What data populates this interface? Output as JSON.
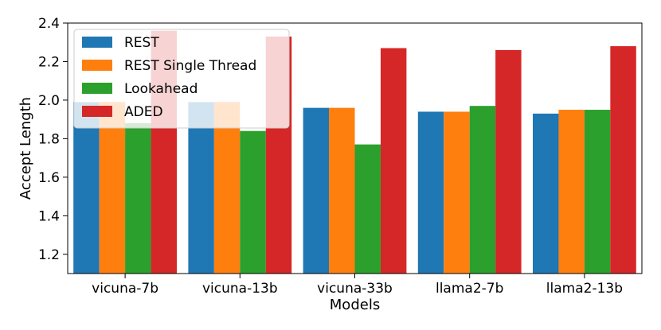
{
  "chart_data": {
    "type": "bar",
    "title": "",
    "xlabel": "Models",
    "ylabel": "Accept Length",
    "ylim": [
      1.1,
      2.4
    ],
    "yticks": [
      "1.2",
      "1.4",
      "1.6",
      "1.8",
      "2.0",
      "2.2",
      "2.4"
    ],
    "categories": [
      "vicuna-7b",
      "vicuna-13b",
      "vicuna-33b",
      "llama2-7b",
      "llama2-13b"
    ],
    "legend_position": "top-left",
    "series": [
      {
        "name": "REST",
        "color": "#1f77b4",
        "values": [
          1.99,
          1.99,
          1.96,
          1.94,
          1.93
        ]
      },
      {
        "name": "REST Single Thread",
        "color": "#ff7f0e",
        "values": [
          1.99,
          1.99,
          1.96,
          1.94,
          1.95
        ]
      },
      {
        "name": "Lookahead",
        "color": "#2ca02c",
        "values": [
          1.88,
          1.84,
          1.77,
          1.97,
          1.95
        ]
      },
      {
        "name": "ADED",
        "color": "#d62728",
        "values": [
          2.36,
          2.33,
          2.27,
          2.26,
          2.28
        ]
      }
    ]
  }
}
